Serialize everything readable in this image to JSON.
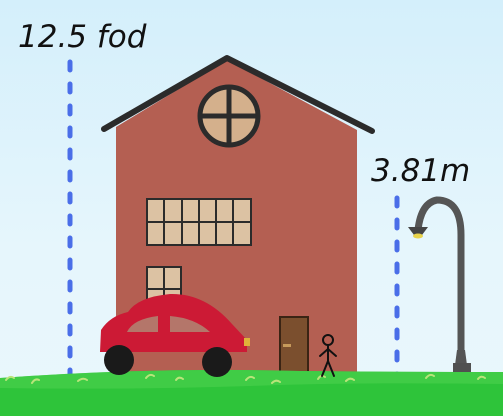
{
  "labels": {
    "house_height": "12.5 fod",
    "lamp_height": "3.81m"
  },
  "colors": {
    "sky": "#dff3fb",
    "house_wall": "#b45f52",
    "roof_outline": "#2b2b2b",
    "window_pane": "#dcc2a3",
    "door": "#7b4f2e",
    "car_body": "#cc1a35",
    "grass": "#2ec43a",
    "measure_line": "#4a6ee8",
    "lamp_post": "#555555"
  },
  "icons": [
    "house-icon",
    "car-icon",
    "stick-figure-icon",
    "street-lamp-icon"
  ]
}
